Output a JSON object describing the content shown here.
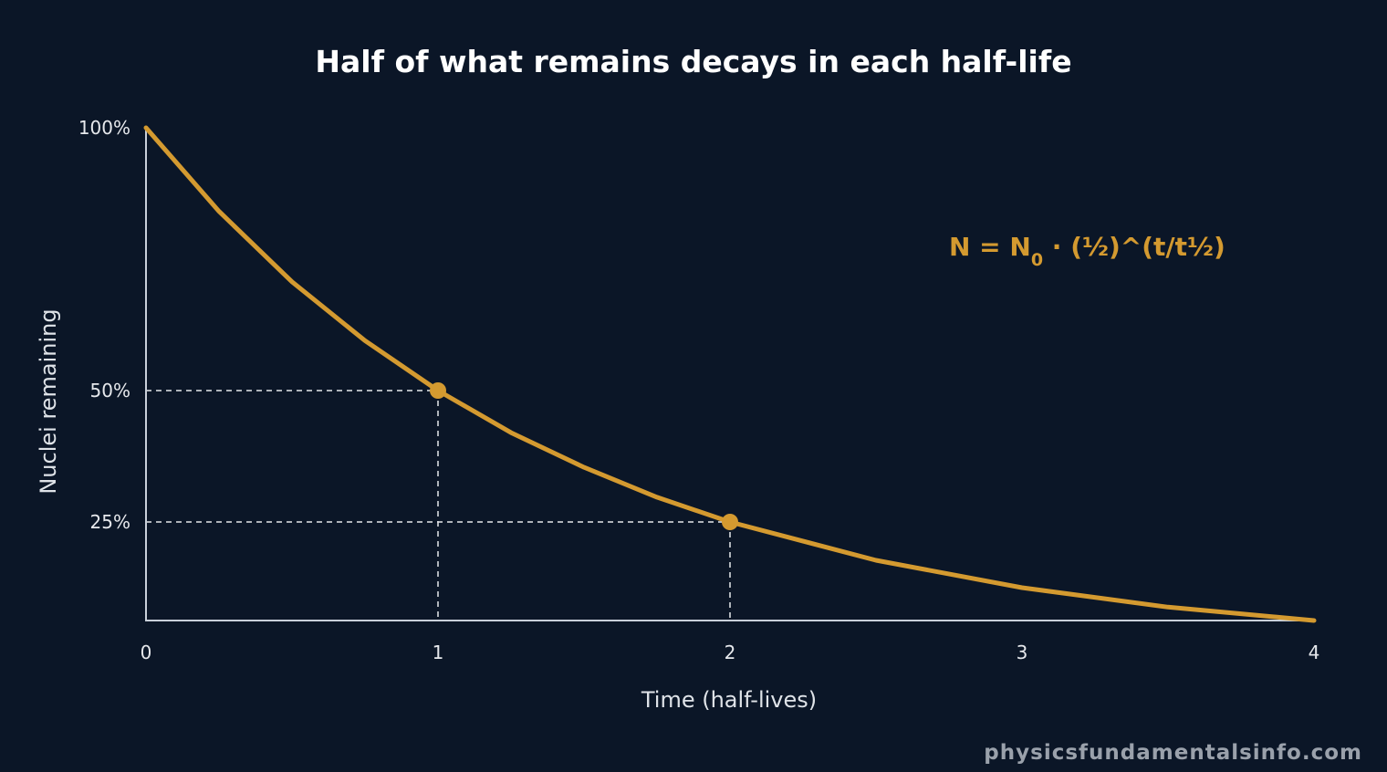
{
  "colors": {
    "background": "#0b1627",
    "curve": "#d49a30",
    "axis": "#c9d0da",
    "guide": "#e6e8ec"
  },
  "chart_data": {
    "type": "line",
    "title": "Half of what remains decays in each half-life",
    "xlabel": "Time (half-lives)",
    "ylabel": "Nuclei remaining",
    "xlim": [
      0,
      4
    ],
    "ylim": [
      6.25,
      100
    ],
    "x_ticks": [
      "0",
      "1",
      "2",
      "3",
      "4"
    ],
    "y_ticks": [
      {
        "value": 100,
        "label": "100%"
      },
      {
        "value": 50,
        "label": "50%"
      },
      {
        "value": 25,
        "label": "25%"
      }
    ],
    "grid": false,
    "series": [
      {
        "x": [
          0,
          0.25,
          0.5,
          0.75,
          1,
          1.25,
          1.5,
          1.75,
          2,
          2.5,
          3,
          3.5,
          4
        ],
        "y": [
          100,
          84.1,
          70.7,
          59.5,
          50,
          42.0,
          35.4,
          29.7,
          25,
          17.7,
          12.5,
          8.8,
          6.25
        ]
      }
    ],
    "highlight_points": [
      {
        "x": 1,
        "y": 50
      },
      {
        "x": 2,
        "y": 25
      }
    ],
    "annotation": {
      "prefix": "N = N",
      "subscript": "0",
      "suffix": " · (½)^(t/t½)"
    }
  },
  "footer": {
    "watermark": "physicsfundamentalsinfo.com"
  }
}
